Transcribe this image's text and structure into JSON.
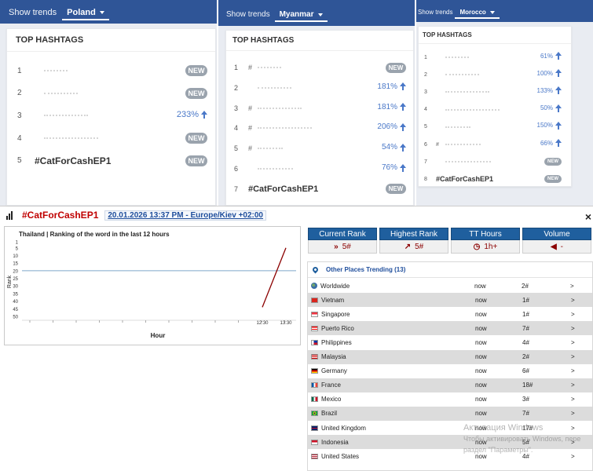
{
  "panels": [
    {
      "show_trends": "Show trends",
      "country": "Poland",
      "title": "TOP HASHTAGS",
      "items": [
        {
          "rank": "1",
          "tag": "",
          "badge": "NEW",
          "change": ""
        },
        {
          "rank": "2",
          "tag": "",
          "badge": "NEW",
          "change": ""
        },
        {
          "rank": "3",
          "tag": "",
          "badge": "",
          "change": "233%"
        },
        {
          "rank": "4",
          "tag": "",
          "badge": "NEW",
          "change": ""
        },
        {
          "rank": "5",
          "tag": "#CatForCashEP1",
          "badge": "NEW",
          "change": ""
        }
      ]
    },
    {
      "show_trends": "Show trends",
      "country": "Myanmar",
      "title": "TOP HASHTAGS",
      "items": [
        {
          "rank": "1",
          "tag": "#",
          "badge": "NEW",
          "change": ""
        },
        {
          "rank": "2",
          "tag": "",
          "badge": "",
          "change": "181%"
        },
        {
          "rank": "3",
          "tag": "#",
          "badge": "",
          "change": "181%"
        },
        {
          "rank": "4",
          "tag": "#",
          "badge": "",
          "change": "206%"
        },
        {
          "rank": "5",
          "tag": "#",
          "badge": "",
          "change": "54%"
        },
        {
          "rank": "6",
          "tag": "",
          "badge": "",
          "change": "76%"
        },
        {
          "rank": "7",
          "tag": "#CatForCashEP1",
          "badge": "NEW",
          "change": ""
        }
      ]
    },
    {
      "show_trends": "Show trends",
      "country": "Morocco",
      "title": "TOP HASHTAGS",
      "items": [
        {
          "rank": "1",
          "tag": "",
          "badge": "",
          "change": "61%"
        },
        {
          "rank": "2",
          "tag": "",
          "badge": "",
          "change": "100%"
        },
        {
          "rank": "3",
          "tag": "",
          "badge": "",
          "change": "133%"
        },
        {
          "rank": "4",
          "tag": "",
          "badge": "",
          "change": "50%"
        },
        {
          "rank": "5",
          "tag": "",
          "badge": "",
          "change": "150%"
        },
        {
          "rank": "6",
          "tag": "#",
          "badge": "",
          "change": "66%"
        },
        {
          "rank": "7",
          "tag": "",
          "badge": "NEW",
          "change": ""
        },
        {
          "rank": "8",
          "tag": "#CatForCashEP1",
          "badge": "NEW",
          "change": ""
        }
      ]
    }
  ],
  "detail": {
    "hashtag": "#CatForCashEP1",
    "datetime": "20.01.2026 13:37 PM - Europe/Kiev +02:00",
    "close": "×"
  },
  "chart_data": {
    "type": "line",
    "title": "Thailand | Ranking of the word in the last 12 hours",
    "xlabel": "Hour",
    "ylabel": "Rank",
    "y_ticks": [
      "1",
      "5",
      "10",
      "15",
      "20",
      "25",
      "30",
      "35",
      "40",
      "45",
      "50"
    ],
    "y_inverted": true,
    "ylim": [
      1,
      50
    ],
    "x_ticks": [
      "12:30",
      "13:30"
    ],
    "reference_line": 20,
    "series": [
      {
        "color": "#8b0000",
        "points": [
          {
            "x": "12:30",
            "y": 44
          },
          {
            "x": "13:30",
            "y": 5
          }
        ]
      }
    ]
  },
  "stats": [
    {
      "label": "Current Rank",
      "icon": "chevrons-right-icon",
      "glyph": "»",
      "value": "5#"
    },
    {
      "label": "Highest Rank",
      "icon": "trend-up-icon",
      "glyph": "↗",
      "value": "5#"
    },
    {
      "label": "TT Hours",
      "icon": "clock-icon",
      "glyph": "◷",
      "value": "1h+"
    },
    {
      "label": "Volume",
      "icon": "speaker-icon",
      "glyph": "◀",
      "value": "-"
    }
  ],
  "places": {
    "title": "Other Places Trending (13)",
    "rows": [
      {
        "name": "Worldwide",
        "flag": "globe",
        "time": "now",
        "rank": "2#",
        "go": ">"
      },
      {
        "name": "Vietnam",
        "flag": "vn",
        "time": "now",
        "rank": "1#",
        "go": ">"
      },
      {
        "name": "Singapore",
        "flag": "sg",
        "time": "now",
        "rank": "1#",
        "go": ">"
      },
      {
        "name": "Puerto Rico",
        "flag": "pr",
        "time": "now",
        "rank": "7#",
        "go": ">"
      },
      {
        "name": "Philippines",
        "flag": "ph",
        "time": "now",
        "rank": "4#",
        "go": ">"
      },
      {
        "name": "Malaysia",
        "flag": "my",
        "time": "now",
        "rank": "2#",
        "go": ">"
      },
      {
        "name": "Germany",
        "flag": "de",
        "time": "now",
        "rank": "6#",
        "go": ">"
      },
      {
        "name": "France",
        "flag": "fr",
        "time": "now",
        "rank": "18#",
        "go": ">"
      },
      {
        "name": "Mexico",
        "flag": "mx",
        "time": "now",
        "rank": "3#",
        "go": ">"
      },
      {
        "name": "Brazil",
        "flag": "br",
        "time": "now",
        "rank": "7#",
        "go": ">"
      },
      {
        "name": "United Kingdom",
        "flag": "gb",
        "time": "now",
        "rank": "17#",
        "go": ">"
      },
      {
        "name": "Indonesia",
        "flag": "id",
        "time": "now",
        "rank": "5#",
        "go": ">"
      },
      {
        "name": "United States",
        "flag": "us",
        "time": "now",
        "rank": "4#",
        "go": ">"
      }
    ]
  },
  "watermark": {
    "line1": "Активация Windows",
    "line2": "Чтобы активировать Windows, пере",
    "line3": "раздел \"Параметры\"."
  }
}
